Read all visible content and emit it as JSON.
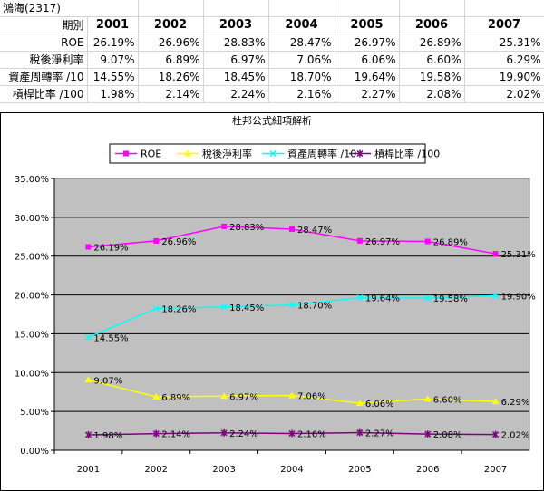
{
  "sheet": {
    "title": "鴻海(2317)",
    "header_label": "期別",
    "years": [
      "2001",
      "2002",
      "2003",
      "2004",
      "2005",
      "2006",
      "2007"
    ],
    "rows": [
      {
        "label": "ROE",
        "values": [
          "26.19%",
          "26.96%",
          "28.83%",
          "28.47%",
          "26.97%",
          "26.89%",
          "25.31%"
        ]
      },
      {
        "label": "稅後淨利率",
        "values": [
          "9.07%",
          "6.89%",
          "6.97%",
          "7.06%",
          "6.06%",
          "6.60%",
          "6.29%"
        ]
      },
      {
        "label": "資產周轉率 /10",
        "values": [
          "14.55%",
          "18.26%",
          "18.45%",
          "18.70%",
          "19.64%",
          "19.58%",
          "19.90%"
        ]
      },
      {
        "label": "槓桿比率 /100",
        "values": [
          "1.98%",
          "2.14%",
          "2.24%",
          "2.16%",
          "2.27%",
          "2.08%",
          "2.02%"
        ]
      }
    ]
  },
  "chart_data": {
    "type": "line",
    "title": "杜邦公式細項解析",
    "categories": [
      "2001",
      "2002",
      "2003",
      "2004",
      "2005",
      "2006",
      "2007"
    ],
    "y_ticks": [
      "0.00%",
      "5.00%",
      "10.00%",
      "15.00%",
      "20.00%",
      "25.00%",
      "30.00%",
      "35.00%"
    ],
    "ylim": [
      0,
      35
    ],
    "grid": true,
    "legend_position": "top",
    "plot_background": "#c0c0c0",
    "series": [
      {
        "name": "ROE",
        "color": "#ff00ff",
        "marker": "square",
        "values": [
          26.19,
          26.96,
          28.83,
          28.47,
          26.97,
          26.89,
          25.31
        ],
        "labels": [
          "26.19%",
          "26.96%",
          "28.83%",
          "28.47%",
          "26.97%",
          "26.89%",
          "25.31%"
        ]
      },
      {
        "name": "稅後淨利率",
        "color": "#ffff00",
        "marker": "triangle",
        "values": [
          9.07,
          6.89,
          6.97,
          7.06,
          6.06,
          6.6,
          6.29
        ],
        "labels": [
          "9.07%",
          "6.89%",
          "6.97%",
          "7.06%",
          "6.06%",
          "6.60%",
          "6.29%"
        ]
      },
      {
        "name": "資產周轉率 /10",
        "color": "#00ffff",
        "marker": "x",
        "values": [
          14.55,
          18.26,
          18.45,
          18.7,
          19.64,
          19.58,
          19.9
        ],
        "labels": [
          "14.55%",
          "18.26%",
          "18.45%",
          "18.70%",
          "19.64%",
          "19.58%",
          "19.90%"
        ]
      },
      {
        "name": "槓桿比率 /100",
        "color": "#800080",
        "marker": "star",
        "values": [
          1.98,
          2.14,
          2.24,
          2.16,
          2.27,
          2.08,
          2.02
        ],
        "labels": [
          "1.98%",
          "2.14%",
          "2.24%",
          "2.16%",
          "2.27%",
          "2.08%",
          "2.02%"
        ]
      }
    ]
  }
}
